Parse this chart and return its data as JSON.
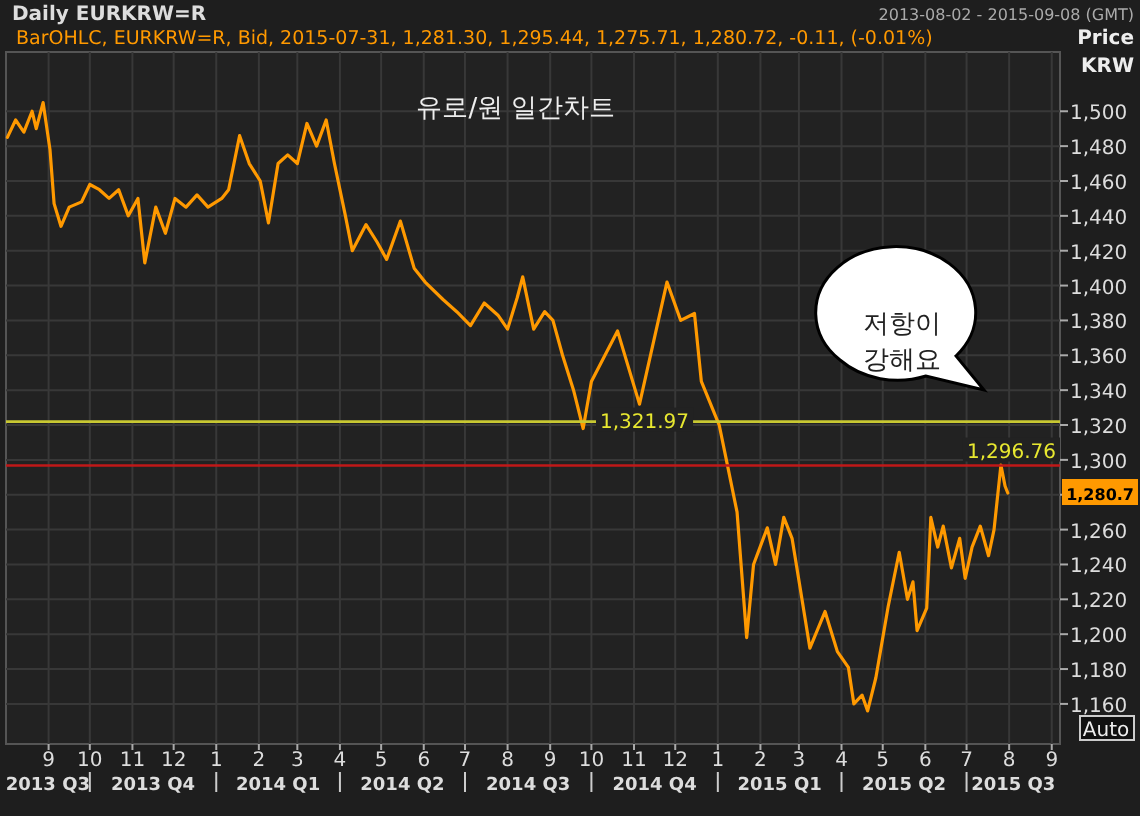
{
  "chart_data": {
    "type": "line",
    "title": "유로/원 일간차트",
    "subtitle": "Daily EURKRW=R",
    "ylabel": "Price KRW",
    "x": [
      "2013-08-02",
      "2013-08-08",
      "2013-08-14",
      "2013-08-20",
      "2013-08-23",
      "2013-08-28",
      "2013-09-02",
      "2013-09-05",
      "2013-09-10",
      "2013-09-16",
      "2013-09-25",
      "2013-10-01",
      "2013-10-08",
      "2013-10-15",
      "2013-10-22",
      "2013-10-29",
      "2013-11-05",
      "2013-11-10",
      "2013-11-18",
      "2013-11-25",
      "2013-12-02",
      "2013-12-10",
      "2013-12-18",
      "2013-12-26",
      "2014-01-05",
      "2014-01-10",
      "2014-01-18",
      "2014-01-25",
      "2014-02-02",
      "2014-02-08",
      "2014-02-15",
      "2014-02-22",
      "2014-03-01",
      "2014-03-08",
      "2014-03-15",
      "2014-03-22",
      "2014-03-28",
      "2014-04-05",
      "2014-04-10",
      "2014-04-20",
      "2014-04-28",
      "2014-05-05",
      "2014-05-15",
      "2014-05-25",
      "2014-06-02",
      "2014-06-15",
      "2014-06-25",
      "2014-07-05",
      "2014-07-15",
      "2014-07-25",
      "2014-08-01",
      "2014-08-08",
      "2014-08-12",
      "2014-08-20",
      "2014-08-28",
      "2014-09-03",
      "2014-09-10",
      "2014-09-18",
      "2014-09-25",
      "2014-10-01",
      "2014-10-20",
      "2014-11-05",
      "2014-11-25",
      "2014-12-05",
      "2014-12-15",
      "2014-12-20",
      "2015-01-02",
      "2015-01-08",
      "2015-01-15",
      "2015-01-22",
      "2015-01-27",
      "2015-02-06",
      "2015-02-12",
      "2015-02-18",
      "2015-02-24",
      "2015-03-02",
      "2015-03-09",
      "2015-03-20",
      "2015-03-29",
      "2015-04-06",
      "2015-04-10",
      "2015-04-16",
      "2015-04-20",
      "2015-04-26",
      "2015-05-05",
      "2015-05-13",
      "2015-05-19",
      "2015-05-23",
      "2015-05-26",
      "2015-06-02",
      "2015-06-05",
      "2015-06-10",
      "2015-06-14",
      "2015-06-20",
      "2015-06-26",
      "2015-06-30",
      "2015-07-05",
      "2015-07-11",
      "2015-07-17",
      "2015-07-21",
      "2015-07-26",
      "2015-07-29",
      "2015-07-31"
    ],
    "series": [
      {
        "color": "#ff9900",
        "values": [
          1485,
          1495,
          1488,
          1500,
          1490,
          1505,
          1478,
          1447,
          1434,
          1445,
          1448,
          1458,
          1455,
          1450,
          1455,
          1440,
          1450,
          1413,
          1445,
          1430,
          1450,
          1445,
          1452,
          1445,
          1450,
          1455,
          1486,
          1470,
          1460,
          1436,
          1470,
          1475,
          1470,
          1493,
          1480,
          1495,
          1470,
          1440,
          1420,
          1435,
          1425,
          1415,
          1437,
          1410,
          1402,
          1392,
          1385,
          1377,
          1390,
          1383,
          1375,
          1393,
          1405,
          1375,
          1385,
          1380,
          1360,
          1340,
          1318,
          1345,
          1374,
          1332,
          1402,
          1380,
          1384,
          1345,
          1320,
          1297,
          1270,
          1198,
          1240,
          1261,
          1240,
          1267,
          1255,
          1226,
          1192,
          1213,
          1190,
          1181,
          1160,
          1165,
          1156,
          1175,
          1216,
          1247,
          1220,
          1230,
          1202,
          1215,
          1267,
          1250,
          1262,
          1238,
          1255,
          1232,
          1250,
          1262,
          1245,
          1260,
          1297,
          1285,
          1281
        ]
      }
    ],
    "xlim": [
      "2013-08-01",
      "2015-09-07"
    ],
    "xticks": [
      {
        "value": "2013-09-01",
        "label": "9"
      },
      {
        "value": "2013-10-01",
        "label": "10"
      },
      {
        "value": "2013-11-01",
        "label": "11"
      },
      {
        "value": "2013-12-01",
        "label": "12"
      },
      {
        "value": "2014-01-01",
        "label": "1"
      },
      {
        "value": "2014-02-01",
        "label": "2"
      },
      {
        "value": "2014-03-01",
        "label": "3"
      },
      {
        "value": "2014-04-01",
        "label": "4"
      },
      {
        "value": "2014-05-01",
        "label": "5"
      },
      {
        "value": "2014-06-01",
        "label": "6"
      },
      {
        "value": "2014-07-01",
        "label": "7"
      },
      {
        "value": "2014-08-01",
        "label": "8"
      },
      {
        "value": "2014-09-01",
        "label": "9"
      },
      {
        "value": "2014-10-01",
        "label": "10"
      },
      {
        "value": "2014-11-01",
        "label": "11"
      },
      {
        "value": "2014-12-01",
        "label": "12"
      },
      {
        "value": "2015-01-01",
        "label": "1"
      },
      {
        "value": "2015-02-01",
        "label": "2"
      },
      {
        "value": "2015-03-01",
        "label": "3"
      },
      {
        "value": "2015-04-01",
        "label": "4"
      },
      {
        "value": "2015-05-01",
        "label": "5"
      },
      {
        "value": "2015-06-01",
        "label": "6"
      },
      {
        "value": "2015-07-01",
        "label": "7"
      },
      {
        "value": "2015-08-01",
        "label": "8"
      },
      {
        "value": "2015-09-01",
        "label": "9"
      }
    ],
    "ylim": [
      1137,
      1534
    ],
    "yticks": [
      {
        "value": 1160,
        "label": "1,160"
      },
      {
        "value": 1180,
        "label": "1,180"
      },
      {
        "value": 1200,
        "label": "1,200"
      },
      {
        "value": 1220,
        "label": "1,220"
      },
      {
        "value": 1240,
        "label": "1,240"
      },
      {
        "value": 1260,
        "label": "1,260"
      },
      {
        "value": 1280,
        "label": null
      },
      {
        "value": 1300,
        "label": "1,300"
      },
      {
        "value": 1320,
        "label": "1,320"
      },
      {
        "value": 1340,
        "label": "1,340"
      },
      {
        "value": 1360,
        "label": "1,360"
      },
      {
        "value": 1380,
        "label": "1,380"
      },
      {
        "value": 1400,
        "label": "1,400"
      },
      {
        "value": 1420,
        "label": "1,420"
      },
      {
        "value": 1440,
        "label": "1,440"
      },
      {
        "value": 1460,
        "label": "1,460"
      },
      {
        "value": 1480,
        "label": "1,480"
      },
      {
        "value": 1500,
        "label": "1,500"
      }
    ],
    "ref_lines": [
      {
        "axis": "y",
        "value": 1321.97,
        "label": "1,321.97",
        "color": "#c8c832"
      },
      {
        "axis": "y",
        "value": 1296.76,
        "label": "1,296.76",
        "color": "#c01818"
      }
    ],
    "grid": true,
    "annotations": [
      "BarOHLC, EURKRW=R, Bid, 2015-07-31, 1,281.30, 1,295.44, 1,275.71, 1,280.72, -0.11, (-0.01%)",
      "2013-08-02 - 2015-09-08 (GMT)",
      "저항이 강해요",
      "Auto",
      "1,280.7",
      "2013 Q3",
      "2013 Q4",
      "2014 Q1",
      "2014 Q2",
      "2014 Q3",
      "2014 Q4",
      "2015 Q1",
      "2015 Q2",
      "2015 Q3"
    ]
  }
}
